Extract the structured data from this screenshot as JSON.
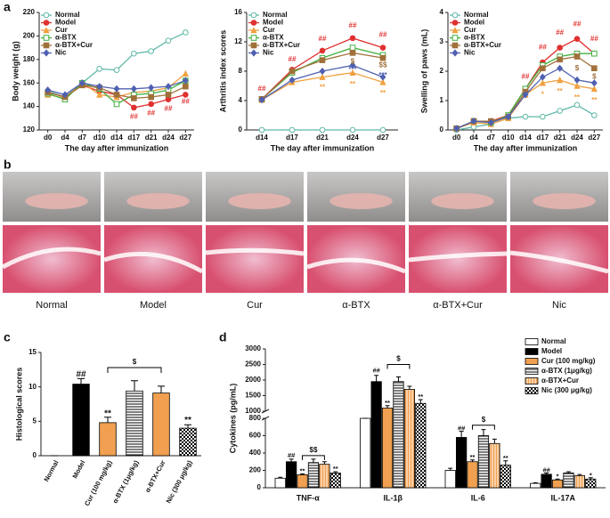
{
  "panels": [
    "a",
    "b",
    "c",
    "d"
  ],
  "photos": {
    "labels": [
      "Normal",
      "Model",
      "Cur",
      "α-BTX",
      "α-BTX+Cur",
      "Nic"
    ]
  },
  "chart_data": [
    {
      "type": "line",
      "x_label": "The day after immunization",
      "y_label": "Body weight (g)",
      "categories": [
        "d0",
        "d4",
        "d7",
        "d10",
        "d14",
        "d17",
        "d21",
        "d24",
        "d27"
      ],
      "ylim": [
        120,
        220
      ],
      "yticks": [
        120,
        140,
        160,
        180,
        200,
        220
      ],
      "legend": "top-left",
      "series": [
        {
          "name": "Normal",
          "color": "#5fb8a8",
          "marker": "circle-open",
          "values": [
            153,
            148,
            160,
            172,
            171,
            185,
            187,
            196,
            203
          ]
        },
        {
          "name": "Model",
          "color": "#e03030",
          "marker": "circle",
          "values": [
            152,
            148,
            158,
            153,
            150,
            139,
            142,
            146,
            150
          ]
        },
        {
          "name": "Cur",
          "color": "#f0a040",
          "marker": "triangle",
          "values": [
            150,
            147,
            160,
            150,
            148,
            152,
            153,
            156,
            168
          ]
        },
        {
          "name": "α-BTX",
          "color": "#40b040",
          "marker": "square-open",
          "values": [
            151,
            146,
            160,
            155,
            142,
            150,
            151,
            154,
            162
          ]
        },
        {
          "name": "α-BTX+Cur",
          "color": "#a0703a",
          "marker": "square",
          "values": [
            152,
            148,
            158,
            156,
            150,
            147,
            148,
            150,
            157
          ]
        },
        {
          "name": "Nic",
          "color": "#5060b0",
          "marker": "diamond",
          "values": [
            154,
            150,
            160,
            157,
            155,
            155,
            156,
            157,
            162
          ]
        }
      ],
      "annotations": [
        {
          "text": "##",
          "x": "d17",
          "y": 131,
          "color": "#e03030"
        },
        {
          "text": "##",
          "x": "d21",
          "y": 134,
          "color": "#e03030"
        },
        {
          "text": "##",
          "x": "d24",
          "y": 138,
          "color": "#e03030"
        },
        {
          "text": "##",
          "x": "d27",
          "y": 144,
          "color": "#e03030"
        }
      ]
    },
    {
      "type": "line",
      "x_label": "The day after immunization",
      "y_label": "Arthritis index scores",
      "categories": [
        "d14",
        "d17",
        "d21",
        "d24",
        "d27"
      ],
      "ylim": [
        0,
        16
      ],
      "yticks": [
        0,
        4,
        8,
        12,
        16
      ],
      "legend": "top-left",
      "series": [
        {
          "name": "Normal",
          "color": "#5fb8a8",
          "marker": "circle-open",
          "values": [
            0,
            0,
            0,
            0,
            0
          ]
        },
        {
          "name": "Model",
          "color": "#e03030",
          "marker": "circle",
          "values": [
            4.2,
            8.2,
            10.8,
            12.5,
            11.2
          ]
        },
        {
          "name": "Cur",
          "color": "#f0a040",
          "marker": "triangle",
          "values": [
            4.1,
            6.5,
            7.2,
            7.8,
            6.5
          ]
        },
        {
          "name": "α-BTX",
          "color": "#40b040",
          "marker": "square-open",
          "values": [
            4.2,
            7.8,
            9.8,
            11.2,
            10.2
          ]
        },
        {
          "name": "α-BTX+Cur",
          "color": "#a0703a",
          "marker": "square",
          "values": [
            4.2,
            8.0,
            9.5,
            10.5,
            9.8
          ]
        },
        {
          "name": "Nic",
          "color": "#5060b0",
          "marker": "diamond",
          "values": [
            4.1,
            6.8,
            8.0,
            8.8,
            7.2
          ]
        }
      ],
      "annotations": [
        {
          "text": "##",
          "x": "d14",
          "y": 5.6,
          "color": "#e03030"
        },
        {
          "text": "##",
          "x": "d17",
          "y": 9.6,
          "color": "#e03030"
        },
        {
          "text": "##",
          "x": "d21",
          "y": 12.4,
          "color": "#e03030"
        },
        {
          "text": "##",
          "x": "d24",
          "y": 14.2,
          "color": "#e03030"
        },
        {
          "text": "##",
          "x": "d27",
          "y": 12.9,
          "color": "#e03030"
        },
        {
          "text": "**",
          "x": "d21",
          "y": 5.8,
          "color": "#f0a040"
        },
        {
          "text": "**",
          "x": "d24",
          "y": 6.2,
          "color": "#f0a040"
        },
        {
          "text": "**",
          "x": "d27",
          "y": 5,
          "color": "#f0a040"
        },
        {
          "text": "$",
          "x": "d24",
          "y": 9.3,
          "color": "#a0703a"
        },
        {
          "text": "$$",
          "x": "d27",
          "y": 8.8,
          "color": "#a0703a"
        },
        {
          "text": "***",
          "x": "d24",
          "y": 8.2,
          "color": "#5060b0"
        },
        {
          "text": "***",
          "x": "d27",
          "y": 7.4,
          "color": "#5060b0"
        }
      ]
    },
    {
      "type": "line",
      "x_label": "The day after immunization",
      "y_label": "Swelling of paws (mL)",
      "categories": [
        "d0",
        "d4",
        "d7",
        "d10",
        "d14",
        "d17",
        "d21",
        "d24",
        "d27"
      ],
      "ylim": [
        0,
        4
      ],
      "yticks": [
        0,
        1,
        2,
        3,
        4
      ],
      "legend": "top-left",
      "series": [
        {
          "name": "Normal",
          "color": "#5fb8a8",
          "marker": "circle-open",
          "values": [
            0,
            0.1,
            0.2,
            0.4,
            0.45,
            0.45,
            0.65,
            0.85,
            0.5
          ]
        },
        {
          "name": "Model",
          "color": "#e03030",
          "marker": "circle",
          "values": [
            0.05,
            0.3,
            0.3,
            0.5,
            1.4,
            2.3,
            2.8,
            3.1,
            2.6
          ]
        },
        {
          "name": "Cur",
          "color": "#f0a040",
          "marker": "triangle",
          "values": [
            0.05,
            0.25,
            0.2,
            0.4,
            1.2,
            1.6,
            1.7,
            1.5,
            1.4
          ]
        },
        {
          "name": "α-BTX",
          "color": "#40b040",
          "marker": "square-open",
          "values": [
            0.05,
            0.3,
            0.25,
            0.5,
            1.4,
            2.2,
            2.5,
            2.6,
            2.6
          ]
        },
        {
          "name": "α-BTX+Cur",
          "color": "#a0703a",
          "marker": "square",
          "values": [
            0.05,
            0.3,
            0.3,
            0.45,
            1.3,
            2.1,
            2.4,
            2.5,
            2.1
          ]
        },
        {
          "name": "Nic",
          "color": "#5060b0",
          "marker": "diamond",
          "values": [
            0.05,
            0.3,
            0.25,
            0.45,
            1.2,
            1.8,
            2.1,
            1.7,
            1.6
          ]
        }
      ],
      "annotations": [
        {
          "text": "##",
          "x": "d14",
          "y": 1.8,
          "color": "#e03030"
        },
        {
          "text": "##",
          "x": "d17",
          "y": 2.8,
          "color": "#e03030"
        },
        {
          "text": "##",
          "x": "d21",
          "y": 3.3,
          "color": "#e03030"
        },
        {
          "text": "##",
          "x": "d24",
          "y": 3.6,
          "color": "#e03030"
        },
        {
          "text": "##",
          "x": "d27",
          "y": 3.1,
          "color": "#e03030"
        },
        {
          "text": "*",
          "x": "d17",
          "y": 1.2,
          "color": "#f0a040"
        },
        {
          "text": "**",
          "x": "d21",
          "y": 1.3,
          "color": "#f0a040"
        },
        {
          "text": "**",
          "x": "d24",
          "y": 1.1,
          "color": "#f0a040"
        },
        {
          "text": "**",
          "x": "d27",
          "y": 1.0,
          "color": "#f0a040"
        },
        {
          "text": "$",
          "x": "d24",
          "y": 2.1,
          "color": "#a0703a"
        },
        {
          "text": "$",
          "x": "d27",
          "y": 1.8,
          "color": "#a0703a"
        }
      ]
    },
    {
      "type": "bar",
      "y_label": "Histological scores",
      "categories": [
        "Normal",
        "Model",
        "Cur (100 mg/kg)",
        "α-BTX (1μg/kg)",
        "α-BTX+Cur",
        "Nic (300 μg/kg)"
      ],
      "values": [
        0,
        10.4,
        4.8,
        9.4,
        9.1,
        4.0
      ],
      "errors": [
        0,
        0.8,
        0.8,
        1.5,
        1.0,
        0.5
      ],
      "colors": [
        "#ffffff",
        "#000000",
        "#f0a050",
        "#ffffff",
        "#f0a050",
        "#ffffff"
      ],
      "patterns": [
        "none",
        "solid",
        "solid",
        "hstripe",
        "solid",
        "check"
      ],
      "ylim": [
        0,
        15
      ],
      "yticks": [
        0,
        5,
        10,
        15
      ],
      "annotations": [
        {
          "text": "##",
          "category": "Model",
          "y": 11.8
        },
        {
          "text": "**",
          "category": "Cur (100 mg/kg)",
          "y": 6.1
        },
        {
          "text": "**",
          "category": "Nic (300 μg/kg)",
          "y": 5.1
        }
      ],
      "brackets": [
        {
          "text": "$",
          "from": "Cur (100 mg/kg)",
          "to": "α-BTX+Cur",
          "y": 12.8
        }
      ]
    },
    {
      "type": "grouped_bar",
      "y_label": "Cytokines (pg/mL)",
      "categories": [
        "TNF-α",
        "IL-1β",
        "IL-6",
        "IL-17A"
      ],
      "ylim": [
        0,
        3000
      ],
      "axis_break": [
        800,
        1000
      ],
      "yticks": [
        0,
        200,
        400,
        600,
        800,
        1000,
        1500,
        2000,
        2500,
        3000
      ],
      "legend": "top-right",
      "series": [
        {
          "name": "Normal",
          "color": "#ffffff",
          "pattern": "none",
          "values": [
            110,
            800,
            200,
            50
          ],
          "errors": [
            10,
            30,
            25,
            8
          ]
        },
        {
          "name": "Model",
          "color": "#000000",
          "pattern": "solid",
          "values": [
            300,
            1950,
            580,
            155
          ],
          "errors": [
            30,
            200,
            70,
            15
          ]
        },
        {
          "name": "Cur (100 mg/kg)",
          "color": "#f0a050",
          "pattern": "solid",
          "values": [
            150,
            1100,
            300,
            90
          ],
          "errors": [
            10,
            80,
            20,
            10
          ]
        },
        {
          "name": "α-BTX (1μg/kg)",
          "color": "#ffffff",
          "pattern": "hstripe",
          "values": [
            290,
            1950,
            600,
            170
          ],
          "errors": [
            40,
            150,
            70,
            15
          ]
        },
        {
          "name": "α-BTX+Cur",
          "color": "#f0a050",
          "pattern": "vstripe",
          "values": [
            270,
            1700,
            510,
            140
          ],
          "errors": [
            30,
            100,
            50,
            12
          ]
        },
        {
          "name": "Nic (300 μg/kg)",
          "color": "#ffffff",
          "pattern": "check",
          "values": [
            170,
            1250,
            260,
            100
          ],
          "errors": [
            15,
            120,
            50,
            15
          ]
        }
      ],
      "annotations": [
        {
          "text": "##",
          "category": "TNF-α",
          "series": "Model",
          "y": 370
        },
        {
          "text": "**",
          "category": "TNF-α",
          "series": "Cur (100 mg/kg)",
          "y": 190
        },
        {
          "text": "**",
          "category": "TNF-α",
          "series": "Nic (300 μg/kg)",
          "y": 215
        },
        {
          "text": "##",
          "category": "IL-1β",
          "series": "Model",
          "y": 2300
        },
        {
          "text": "**",
          "category": "IL-1β",
          "series": "Cur (100 mg/kg)",
          "y": 1250
        },
        {
          "text": "**",
          "category": "IL-1β",
          "series": "Nic (300 μg/kg)",
          "y": 1450
        },
        {
          "text": "##",
          "category": "IL-6",
          "series": "Model",
          "y": 680
        },
        {
          "text": "**",
          "category": "IL-6",
          "series": "Cur (100 mg/kg)",
          "y": 350
        },
        {
          "text": "**",
          "category": "IL-6",
          "series": "Nic (300 μg/kg)",
          "y": 340
        },
        {
          "text": "##",
          "category": "IL-17A",
          "series": "Model",
          "y": 200
        },
        {
          "text": "*",
          "category": "IL-17A",
          "series": "Cur (100 mg/kg)",
          "y": 130
        },
        {
          "text": "*",
          "category": "IL-17A",
          "series": "Nic (300 μg/kg)",
          "y": 140
        }
      ],
      "brackets": [
        {
          "text": "$$",
          "category": "TNF-α",
          "from": "Cur (100 mg/kg)",
          "to": "α-BTX+Cur",
          "y": 370
        },
        {
          "text": "$",
          "category": "IL-1β",
          "from": "Cur (100 mg/kg)",
          "to": "α-BTX+Cur",
          "y": 2500
        },
        {
          "text": "$",
          "category": "IL-6",
          "from": "Cur (100 mg/kg)",
          "to": "α-BTX+Cur",
          "y": 720
        }
      ]
    }
  ]
}
